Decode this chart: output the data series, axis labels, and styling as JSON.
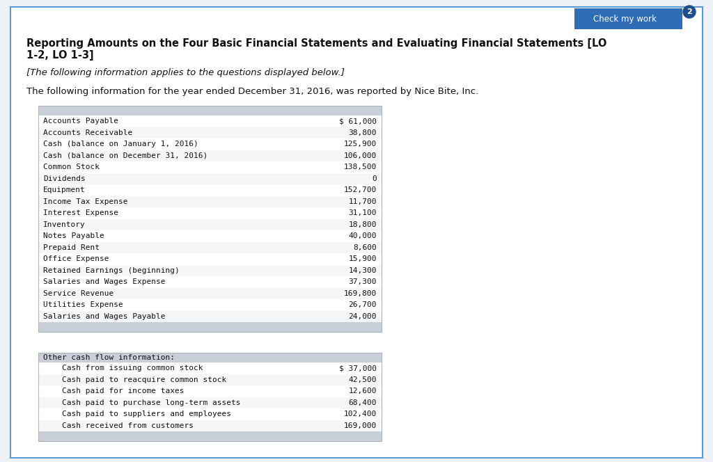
{
  "bg_color": "#eef2f7",
  "page_bg": "#ffffff",
  "title_line1": "Reporting Amounts on the Four Basic Financial Statements and Evaluating Financial Statements [LO",
  "title_line2": "1-2, LO 1-3]",
  "subtitle": "[The following information applies to the questions displayed below.]",
  "intro": "The following information for the year ended December 31, 2016, was reported by Nice Bite, Inc.",
  "table1_header_color": "#c9cfd6",
  "table1_rows": [
    [
      "Accounts Payable",
      "$ 61,000"
    ],
    [
      "Accounts Receivable",
      "38,800"
    ],
    [
      "Cash (balance on January 1, 2016)",
      "125,900"
    ],
    [
      "Cash (balance on December 31, 2016)",
      "106,000"
    ],
    [
      "Common Stock",
      "138,500"
    ],
    [
      "Dividends",
      "0"
    ],
    [
      "Equipment",
      "152,700"
    ],
    [
      "Income Tax Expense",
      "11,700"
    ],
    [
      "Interest Expense",
      "31,100"
    ],
    [
      "Inventory",
      "18,800"
    ],
    [
      "Notes Payable",
      "40,000"
    ],
    [
      "Prepaid Rent",
      "8,600"
    ],
    [
      "Office Expense",
      "15,900"
    ],
    [
      "Retained Earnings (beginning)",
      "14,300"
    ],
    [
      "Salaries and Wages Expense",
      "37,300"
    ],
    [
      "Service Revenue",
      "169,800"
    ],
    [
      "Utilities Expense",
      "26,700"
    ],
    [
      "Salaries and Wages Payable",
      "24,000"
    ]
  ],
  "table2_header": "Other cash flow information:",
  "table2_header_color": "#c9cfd6",
  "table2_rows": [
    [
      "    Cash from issuing common stock",
      "$ 37,000"
    ],
    [
      "    Cash paid to reacquire common stock",
      "42,500"
    ],
    [
      "    Cash paid for income taxes",
      "12,600"
    ],
    [
      "    Cash paid to purchase long-term assets",
      "68,400"
    ],
    [
      "    Cash paid to suppliers and employees",
      "102,400"
    ],
    [
      "    Cash received from customers",
      "169,000"
    ]
  ],
  "check_my_work_color": "#2f6db5",
  "check_my_work_text": "Check my work",
  "badge_color": "#1e4f8c",
  "badge_text": "2",
  "border_color": "#5b9bd5",
  "row_alt_color": "#f4f6f8",
  "row_main_color": "#ffffff",
  "text_color": "#111111",
  "mono_font": "monospace",
  "table_border_color": "#aab4be"
}
